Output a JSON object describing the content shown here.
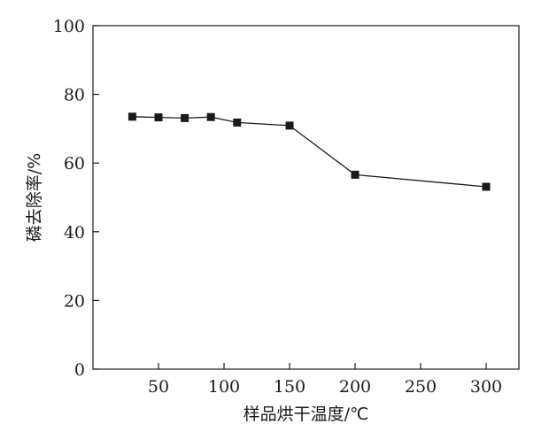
{
  "chart_data": {
    "type": "line",
    "title": "",
    "xlabel": "样品烘干温度/℃",
    "ylabel": "磷去除率/%",
    "xlim": [
      0,
      325
    ],
    "ylim": [
      0,
      100
    ],
    "x_ticks": [
      50,
      100,
      150,
      200,
      250,
      300
    ],
    "y_ticks": [
      0,
      20,
      40,
      60,
      80,
      100
    ],
    "grid": false,
    "marker": "square",
    "line_color": "#1a1a1a",
    "series": [
      {
        "x": [
          30,
          50,
          70,
          90,
          110,
          150,
          200,
          300
        ],
        "y": [
          73.5,
          73.3,
          73.1,
          73.4,
          71.8,
          70.9,
          56.6,
          53.1
        ]
      }
    ]
  }
}
